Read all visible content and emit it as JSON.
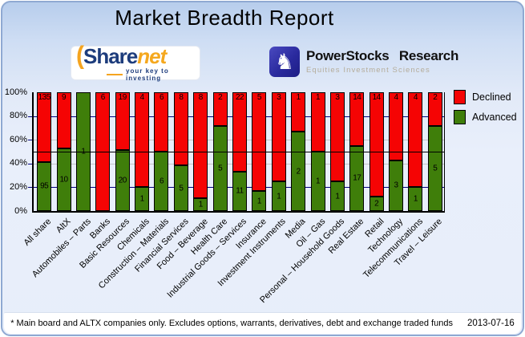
{
  "title": "Market Breadth Report",
  "logos": {
    "sharenet": {
      "name_primary": "Share",
      "name_secondary": "net",
      "tagline": "your key to investing",
      "navy": "#1d3c7c",
      "orange": "#f5a41f"
    },
    "powerstocks": {
      "name": "PowerStocks Research",
      "subtitle": "Equities Investment Sciences",
      "icon": "knight-chess-icon",
      "square_color": "#2a2a9e"
    }
  },
  "legend": [
    {
      "label": "Declined",
      "color": "#f50404"
    },
    {
      "label": "Advanced",
      "color": "#3f7e0a"
    }
  ],
  "footer": {
    "note": "* Main board and ALTX companies only. Excludes options, warrants, derivatives, debt and exchange traded funds",
    "date": "2013-07-16"
  },
  "colors": {
    "declined_red": "#f50404",
    "advanced_green": "#3f7e0a",
    "grid_navy": "#000080",
    "grid_silver": "#c4c4c4",
    "card_border": "#8fa9d2"
  },
  "chart_data": {
    "type": "bar",
    "stacked": true,
    "normalized_to_percent": true,
    "title": "Market Breadth Report",
    "categories": [
      "All share",
      "AltX",
      "Automobiles – Parts",
      "Banks",
      "Basic Resources",
      "Chemicals",
      "Construction – Materials",
      "Financial Services",
      "Food – Beverage",
      "Health Care",
      "Industrial Goods – Services",
      "Insurance",
      "Investment Instruments",
      "Media",
      "Oil – Gas",
      "Personal – Household Goods",
      "Real Estate",
      "Retail",
      "Technology",
      "Telecommunications",
      "Travel – Leisure"
    ],
    "series": [
      {
        "name": "Declined",
        "color": "#f50404",
        "values": [
          135,
          9,
          0,
          6,
          19,
          4,
          6,
          8,
          8,
          2,
          22,
          5,
          3,
          1,
          1,
          3,
          14,
          14,
          4,
          4,
          2
        ]
      },
      {
        "name": "Advanced",
        "color": "#3f7e0a",
        "values": [
          95,
          10,
          1,
          0,
          20,
          1,
          6,
          5,
          1,
          5,
          11,
          1,
          1,
          2,
          1,
          1,
          17,
          2,
          3,
          1,
          5
        ]
      }
    ],
    "ylabel": "",
    "xlabel": "",
    "ylim_percent": [
      0,
      100
    ],
    "y_ticks_percent": [
      100,
      80,
      60,
      40,
      20,
      0
    ],
    "gridlines": [
      {
        "pct": 80,
        "color": "#000080"
      },
      {
        "pct": 60,
        "color": "#c4c4c4"
      },
      {
        "pct": 40,
        "color": "#c4c4c4"
      },
      {
        "pct": 20,
        "color": "#000080"
      }
    ],
    "reference_line_percent": 50,
    "legend_position": "top-right",
    "bar_labels": "raw counts shown inside segments"
  }
}
